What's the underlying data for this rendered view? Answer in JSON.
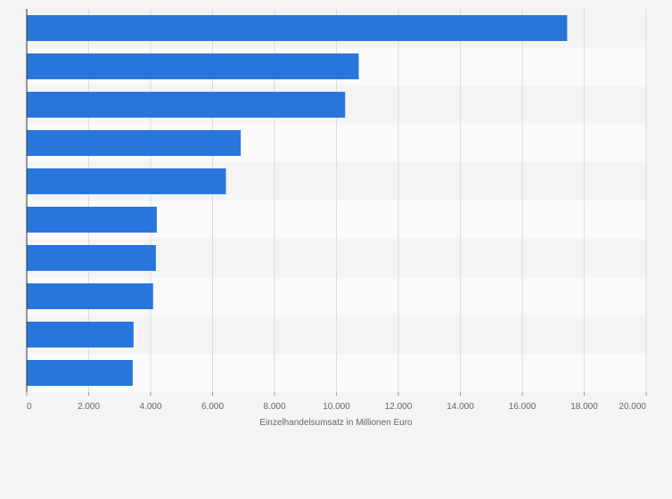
{
  "chart_data": {
    "type": "bar",
    "orientation": "horizontal",
    "title": "",
    "xlabel": "Einzelhandelsumsatz in Millionen Euro",
    "ylabel": "",
    "categories": [
      "",
      "",
      "",
      "",
      "",
      "",
      "",
      "",
      "",
      ""
    ],
    "values": [
      17450,
      10720,
      10280,
      6910,
      6430,
      4200,
      4170,
      4080,
      3450,
      3420
    ],
    "xlim": [
      0,
      20000
    ],
    "xticks": [
      0,
      2000,
      4000,
      6000,
      8000,
      10000,
      12000,
      14000,
      16000,
      18000,
      20000
    ],
    "xtick_labels": [
      "0",
      "2.000",
      "4.000",
      "6.000",
      "8.000",
      "10.000",
      "12.000",
      "14.000",
      "16.000",
      "18.000",
      "20.000"
    ],
    "grid": true,
    "legend": "none",
    "colors": {
      "bar": "#2876dd",
      "band_light": "#fafafa",
      "band_dark": "#f4f4f4",
      "grid": "#dcdcdc",
      "axis": "#333333",
      "text": "#666666",
      "background": "#f4f4f4"
    }
  }
}
